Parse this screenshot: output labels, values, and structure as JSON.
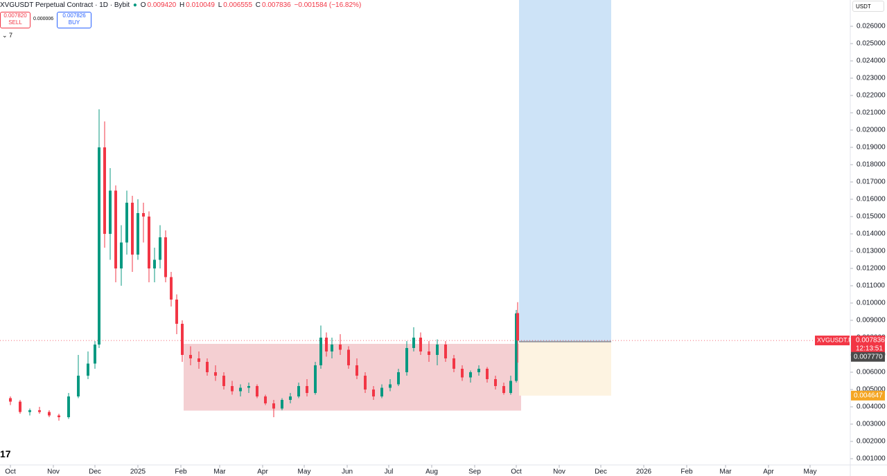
{
  "chart_data": {
    "type": "candlestick",
    "title": "XVGUSDT Perpetual Contract · 1D · Bybit",
    "ohlc_header": {
      "o_label": "O",
      "o": "0.009420",
      "h_label": "H",
      "h": "0.010049",
      "l_label": "L",
      "l": "0.006555",
      "c_label": "C",
      "c": "0.007836",
      "change": "−0.001584 (−16.82%)"
    },
    "trade": {
      "sell_price": "0.007820",
      "sell": "SELL",
      "spread": "0.000006",
      "buy_price": "0.007826",
      "buy": "BUY"
    },
    "indicator": "7",
    "currency": "USDT",
    "logo": "17",
    "colors": {
      "up": "#089981",
      "down": "#f23645"
    },
    "x": [
      0,
      7,
      14,
      21,
      28,
      35,
      42,
      49,
      56,
      61,
      64,
      68,
      72,
      76,
      80,
      84,
      88,
      92,
      96,
      100,
      104,
      108,
      112,
      116,
      120,
      124,
      130,
      136,
      142,
      148,
      154,
      160,
      166,
      172,
      178,
      184,
      190,
      196,
      202,
      208,
      214,
      220,
      224,
      228,
      232,
      238,
      244,
      250,
      256,
      262,
      268,
      274,
      280,
      286,
      291,
      296,
      302,
      308,
      314,
      320,
      326,
      332,
      338,
      344,
      350,
      356,
      361,
      365,
      366
    ],
    "open": [
      0.0045,
      0.0043,
      0.0037,
      0.0038,
      0.0037,
      0.0035,
      0.0034,
      0.0046,
      0.0058,
      0.0065,
      0.0076,
      0.019,
      0.014,
      0.0165,
      0.012,
      0.0135,
      0.0158,
      0.0128,
      0.0152,
      0.015,
      0.012,
      0.0125,
      0.0138,
      0.0115,
      0.0102,
      0.0088,
      0.007,
      0.0068,
      0.0066,
      0.006,
      0.0058,
      0.0052,
      0.0049,
      0.0051,
      0.0052,
      0.0046,
      0.0042,
      0.0039,
      0.0044,
      0.0046,
      0.0052,
      0.0048,
      0.0064,
      0.008,
      0.0072,
      0.0076,
      0.0073,
      0.0064,
      0.0058,
      0.005,
      0.0046,
      0.0051,
      0.0053,
      0.006,
      0.0074,
      0.008,
      0.0072,
      0.007,
      0.0076,
      0.0068,
      0.0062,
      0.0057,
      0.006,
      0.0062,
      0.0056,
      0.0052,
      0.0048,
      0.0055,
      0.00942
    ],
    "high": [
      0.0046,
      0.0044,
      0.0039,
      0.004,
      0.0038,
      0.0036,
      0.0048,
      0.007,
      0.0072,
      0.0078,
      0.0212,
      0.0205,
      0.0178,
      0.0168,
      0.0145,
      0.0165,
      0.0162,
      0.016,
      0.0158,
      0.0153,
      0.0132,
      0.0145,
      0.0142,
      0.0118,
      0.0105,
      0.009,
      0.0075,
      0.0072,
      0.0068,
      0.0064,
      0.006,
      0.0055,
      0.0053,
      0.0054,
      0.0053,
      0.0047,
      0.0044,
      0.0045,
      0.0048,
      0.0054,
      0.0056,
      0.0066,
      0.0087,
      0.0083,
      0.008,
      0.0082,
      0.0075,
      0.0068,
      0.006,
      0.0052,
      0.0053,
      0.0056,
      0.0062,
      0.0078,
      0.0086,
      0.0083,
      0.0078,
      0.0079,
      0.0078,
      0.007,
      0.0064,
      0.0061,
      0.0064,
      0.0063,
      0.0058,
      0.0054,
      0.0058,
      0.0096,
      0.010049
    ],
    "low": [
      0.0041,
      0.0036,
      0.0035,
      0.0036,
      0.0034,
      0.0032,
      0.0033,
      0.0045,
      0.0056,
      0.0062,
      0.0074,
      0.0132,
      0.0125,
      0.0112,
      0.011,
      0.0128,
      0.0118,
      0.0125,
      0.0135,
      0.0112,
      0.0112,
      0.012,
      0.0112,
      0.0098,
      0.0082,
      0.0066,
      0.0064,
      0.0062,
      0.0058,
      0.0055,
      0.005,
      0.0047,
      0.0046,
      0.0048,
      0.0045,
      0.0041,
      0.0034,
      0.0038,
      0.0042,
      0.0045,
      0.0046,
      0.0047,
      0.0062,
      0.0069,
      0.0068,
      0.007,
      0.0062,
      0.0056,
      0.0048,
      0.0044,
      0.0045,
      0.0049,
      0.0052,
      0.0058,
      0.0072,
      0.007,
      0.0066,
      0.0064,
      0.0066,
      0.006,
      0.0055,
      0.0054,
      0.0058,
      0.0054,
      0.005,
      0.0047,
      0.0047,
      0.0054,
      0.006555
    ],
    "close": [
      0.0043,
      0.0037,
      0.0038,
      0.0037,
      0.0035,
      0.0034,
      0.0046,
      0.0058,
      0.0065,
      0.0076,
      0.019,
      0.014,
      0.0165,
      0.012,
      0.0135,
      0.0158,
      0.0128,
      0.0152,
      0.015,
      0.012,
      0.0125,
      0.0138,
      0.0115,
      0.0102,
      0.0088,
      0.007,
      0.0068,
      0.0066,
      0.006,
      0.0058,
      0.0052,
      0.0049,
      0.0051,
      0.0052,
      0.0046,
      0.0042,
      0.0039,
      0.0044,
      0.0046,
      0.0052,
      0.0048,
      0.0064,
      0.008,
      0.0072,
      0.0076,
      0.0073,
      0.0064,
      0.0058,
      0.005,
      0.0046,
      0.0051,
      0.0053,
      0.006,
      0.0074,
      0.008,
      0.0072,
      0.007,
      0.0076,
      0.0068,
      0.0062,
      0.0057,
      0.006,
      0.0062,
      0.0056,
      0.0052,
      0.0048,
      0.0055,
      0.0094,
      0.007836
    ],
    "zone": {
      "x": [
        125,
        368.5
      ],
      "y": [
        0.00378,
        0.00764
      ],
      "color": "#f4cfd2"
    },
    "position": {
      "x": [
        367,
        433.5
      ],
      "entry": {
        "value": 0.00777,
        "label": "0.007770"
      },
      "stop": {
        "value": 0.004647,
        "label": "0.004647"
      },
      "target_color": "#cde3f7",
      "stop_color": "#fdf3e1"
    },
    "last_price": {
      "symbol": "XVGUSDT.P",
      "value": 0.007836,
      "label": "0.007836",
      "countdown": "12:13:51"
    },
    "xlim": [
      -7.5,
      605
    ],
    "xticks": [
      {
        "value": 0,
        "label": "Oct"
      },
      {
        "value": 31,
        "label": "Nov"
      },
      {
        "value": 61,
        "label": "Dec"
      },
      {
        "value": 92,
        "label": "2025"
      },
      {
        "value": 123,
        "label": "Feb"
      },
      {
        "value": 151,
        "label": "Mar"
      },
      {
        "value": 182,
        "label": "Apr"
      },
      {
        "value": 212,
        "label": "May"
      },
      {
        "value": 243,
        "label": "Jun"
      },
      {
        "value": 273,
        "label": "Jul"
      },
      {
        "value": 304,
        "label": "Aug"
      },
      {
        "value": 335,
        "label": "Sep"
      },
      {
        "value": 365,
        "label": "Oct"
      },
      {
        "value": 396,
        "label": "Nov"
      },
      {
        "value": 426,
        "label": "Dec"
      },
      {
        "value": 457,
        "label": "2026"
      },
      {
        "value": 488,
        "label": "Feb"
      },
      {
        "value": 516,
        "label": "Mar"
      },
      {
        "value": 547,
        "label": "Apr"
      },
      {
        "value": 577,
        "label": "May"
      }
    ],
    "ylim": [
      0.00072,
      0.02752
    ],
    "yticks": [
      {
        "value": 0.001,
        "label": "0.001000"
      },
      {
        "value": 0.002,
        "label": "0.002000"
      },
      {
        "value": 0.003,
        "label": "0.003000"
      },
      {
        "value": 0.004,
        "label": "0.004000"
      },
      {
        "value": 0.005,
        "label": "0.005000"
      },
      {
        "value": 0.006,
        "label": "0.006000"
      },
      {
        "value": 0.007,
        "label": "0.007000"
      },
      {
        "value": 0.008,
        "label": "0.008000"
      },
      {
        "value": 0.009,
        "label": "0.009000"
      },
      {
        "value": 0.01,
        "label": "0.010000"
      },
      {
        "value": 0.011,
        "label": "0.011000"
      },
      {
        "value": 0.012,
        "label": "0.012000"
      },
      {
        "value": 0.013,
        "label": "0.013000"
      },
      {
        "value": 0.014,
        "label": "0.014000"
      },
      {
        "value": 0.015,
        "label": "0.015000"
      },
      {
        "value": 0.016,
        "label": "0.016000"
      },
      {
        "value": 0.017,
        "label": "0.017000"
      },
      {
        "value": 0.018,
        "label": "0.018000"
      },
      {
        "value": 0.019,
        "label": "0.019000"
      },
      {
        "value": 0.02,
        "label": "0.020000"
      },
      {
        "value": 0.021,
        "label": "0.021000"
      },
      {
        "value": 0.022,
        "label": "0.022000"
      },
      {
        "value": 0.023,
        "label": "0.023000"
      },
      {
        "value": 0.024,
        "label": "0.024000"
      },
      {
        "value": 0.025,
        "label": "0.025000"
      },
      {
        "value": 0.026,
        "label": "0.026000"
      }
    ]
  }
}
